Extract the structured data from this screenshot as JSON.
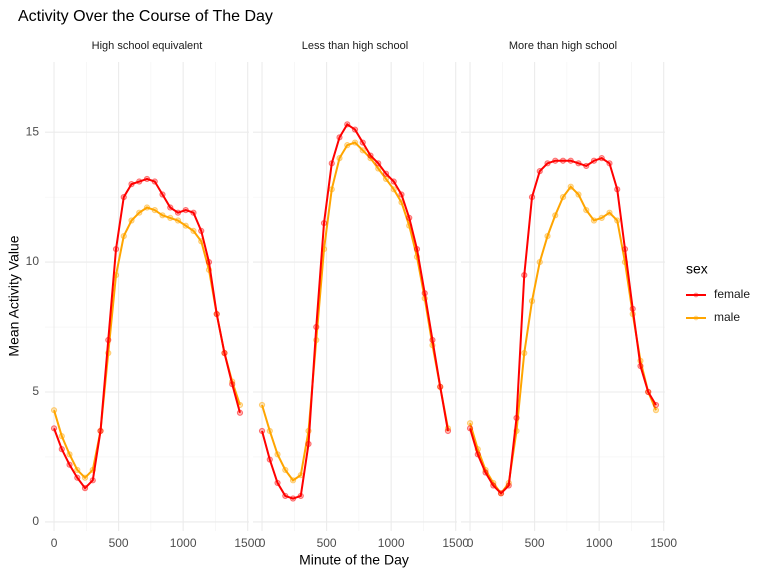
{
  "chart_data": {
    "type": "line",
    "title": "Activity Over the Course of The Day",
    "xlabel": "Minute of the Day",
    "ylabel": "Mean Activity Value",
    "legend_title": "sex",
    "legend_position": "right",
    "grid": true,
    "x": [
      0,
      60,
      120,
      180,
      240,
      300,
      360,
      420,
      480,
      540,
      600,
      660,
      720,
      780,
      840,
      900,
      960,
      1020,
      1080,
      1140,
      1200,
      1260,
      1320,
      1380,
      1440
    ],
    "xlim": [
      -70,
      1510
    ],
    "ylim": [
      -0.35,
      17.7
    ],
    "xticks": [
      0,
      500,
      1000,
      1500
    ],
    "yticks": [
      0,
      5,
      10,
      15
    ],
    "xminor": [
      250,
      750,
      1250
    ],
    "yminor": [
      2.5,
      7.5,
      12.5
    ],
    "facets": [
      {
        "title": "High school equivalent",
        "series": [
          {
            "name": "female",
            "color": "#ff0000",
            "values": [
              3.6,
              2.8,
              2.2,
              1.7,
              1.3,
              1.6,
              3.5,
              7,
              10.5,
              12.5,
              13,
              13.1,
              13.2,
              13.1,
              12.6,
              12.1,
              11.9,
              12,
              11.9,
              11.2,
              10,
              8,
              6.5,
              5.3,
              4.2
            ]
          },
          {
            "name": "male",
            "color": "#ffa500",
            "values": [
              4.3,
              3.3,
              2.6,
              2.0,
              1.7,
              2.0,
              3.5,
              6.5,
              9.5,
              11,
              11.6,
              11.9,
              12.1,
              12.0,
              11.8,
              11.7,
              11.6,
              11.4,
              11.2,
              10.8,
              9.7,
              8,
              6.5,
              5.4,
              4.5
            ]
          }
        ]
      },
      {
        "title": "Less than high school",
        "series": [
          {
            "name": "female",
            "color": "#ff0000",
            "values": [
              3.5,
              2.4,
              1.5,
              1.0,
              0.9,
              1.0,
              3,
              7.5,
              11.5,
              13.8,
              14.8,
              15.3,
              15.1,
              14.6,
              14.1,
              13.8,
              13.4,
              13.1,
              12.6,
              11.7,
              10.5,
              8.8,
              7,
              5.2,
              3.5
            ]
          },
          {
            "name": "male",
            "color": "#ffa500",
            "values": [
              4.5,
              3.5,
              2.6,
              2.0,
              1.6,
              1.8,
              3.5,
              7,
              10.5,
              12.8,
              14,
              14.5,
              14.6,
              14.3,
              14,
              13.6,
              13.2,
              12.8,
              12.3,
              11.4,
              10.2,
              8.6,
              6.8,
              5.2,
              3.6
            ]
          }
        ]
      },
      {
        "title": "More than high school",
        "series": [
          {
            "name": "female",
            "color": "#ff0000",
            "values": [
              3.6,
              2.6,
              1.9,
              1.4,
              1.1,
              1.4,
              4,
              9.5,
              12.5,
              13.5,
              13.8,
              13.9,
              13.9,
              13.9,
              13.8,
              13.7,
              13.9,
              14,
              13.8,
              12.8,
              10.5,
              8.2,
              6,
              5,
              4.5
            ]
          },
          {
            "name": "male",
            "color": "#ffa500",
            "values": [
              3.8,
              2.8,
              2.0,
              1.5,
              1.1,
              1.5,
              3.5,
              6.5,
              8.5,
              10,
              11,
              11.8,
              12.5,
              12.9,
              12.6,
              12,
              11.6,
              11.7,
              11.9,
              11.6,
              10,
              8,
              6.2,
              5,
              4.3
            ]
          }
        ]
      }
    ]
  }
}
